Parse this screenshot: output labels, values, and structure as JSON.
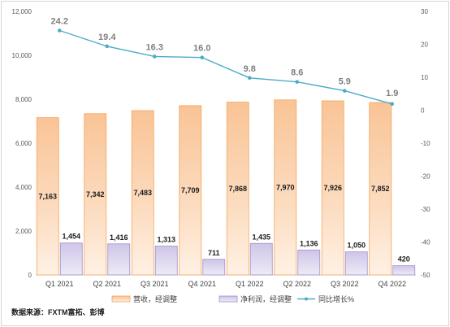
{
  "chart_data": {
    "type": "bar",
    "categories": [
      "Q1 2021",
      "Q2 2021",
      "Q3 2021",
      "Q4 2021",
      "Q1 2022",
      "Q2 2022",
      "Q3 2022",
      "Q4 2022"
    ],
    "series": [
      {
        "name": "营收，经调整",
        "type": "bar",
        "axis": "left",
        "color": "#f7a65d",
        "values": [
          7163,
          7342,
          7483,
          7709,
          7868,
          7970,
          7926,
          7852
        ],
        "labels": [
          "7,163",
          "7,342",
          "7,483",
          "7,709",
          "7,868",
          "7,970",
          "7,926",
          "7,852"
        ]
      },
      {
        "name": "净利润，经调整",
        "type": "bar",
        "axis": "left",
        "color": "#b4a7d6",
        "values": [
          1454,
          1416,
          1313,
          711,
          1435,
          1136,
          1050,
          420
        ],
        "labels": [
          "1,454",
          "1,416",
          "1,313",
          "711",
          "1,435",
          "1,136",
          "1,050",
          "420"
        ]
      },
      {
        "name": "同比增长%",
        "type": "line",
        "axis": "right",
        "color": "#4bacc6",
        "values": [
          24.2,
          19.4,
          16.3,
          16.0,
          9.8,
          8.6,
          5.9,
          1.9
        ],
        "labels": [
          "24.2",
          "19.4",
          "16.3",
          "16.0",
          "9.8",
          "8.6",
          "5.9",
          "1.9"
        ]
      }
    ],
    "y_left": {
      "ylim": [
        0,
        12000
      ],
      "ticks": [
        0,
        2000,
        4000,
        6000,
        8000,
        10000,
        12000
      ],
      "tick_labels": [
        "0",
        "2,000",
        "4,000",
        "6,000",
        "8,000",
        "10,000",
        "12,000"
      ]
    },
    "y_right": {
      "ylim": [
        -50,
        30
      ],
      "ticks": [
        30,
        20,
        10,
        0,
        -10,
        -20,
        -30,
        -40,
        -50
      ],
      "tick_labels": [
        "30",
        "20",
        "10",
        "0",
        "-10",
        "-20",
        "-30",
        "-40",
        "-50"
      ]
    },
    "grid": false,
    "legend_position": "bottom"
  },
  "source_note": "数据来源：FXTM富拓、彭博"
}
